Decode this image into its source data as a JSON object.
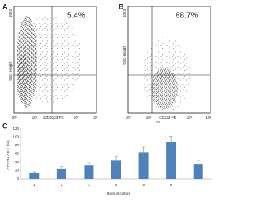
{
  "panels": [
    {
      "label": "A",
      "percent": "5.4%",
      "y_top_label": "1023",
      "y_axis_label": "SSC-Height",
      "x_axis_label": "CD133-PE",
      "x_tick_labels": [
        "10⁰",
        "10¹",
        "10²",
        "10³",
        "10⁴"
      ]
    },
    {
      "label": "B",
      "percent": "88.7%",
      "y_top_label": "1023",
      "y_axis_label": "SSC-Height",
      "x_axis_label": "CD133-PE",
      "x_tick_labels": [
        "10⁰",
        "10¹",
        "10²",
        "10³",
        "10⁴"
      ]
    }
  ],
  "chart_data": {
    "type": "bar",
    "panel_label": "C",
    "y_label": "CD133+ CELL (%)",
    "x_label": "Days of culture",
    "categories": [
      "1",
      "2",
      "3",
      "4",
      "5",
      "6",
      "7"
    ],
    "values": [
      15,
      25,
      32,
      45,
      64,
      88,
      36
    ],
    "errors": [
      2,
      5,
      6,
      10,
      12,
      14,
      8
    ],
    "color": "#4f81bd",
    "ylim": [
      0,
      120
    ],
    "yticks": [
      0,
      20,
      40,
      60,
      80,
      100,
      120
    ]
  }
}
